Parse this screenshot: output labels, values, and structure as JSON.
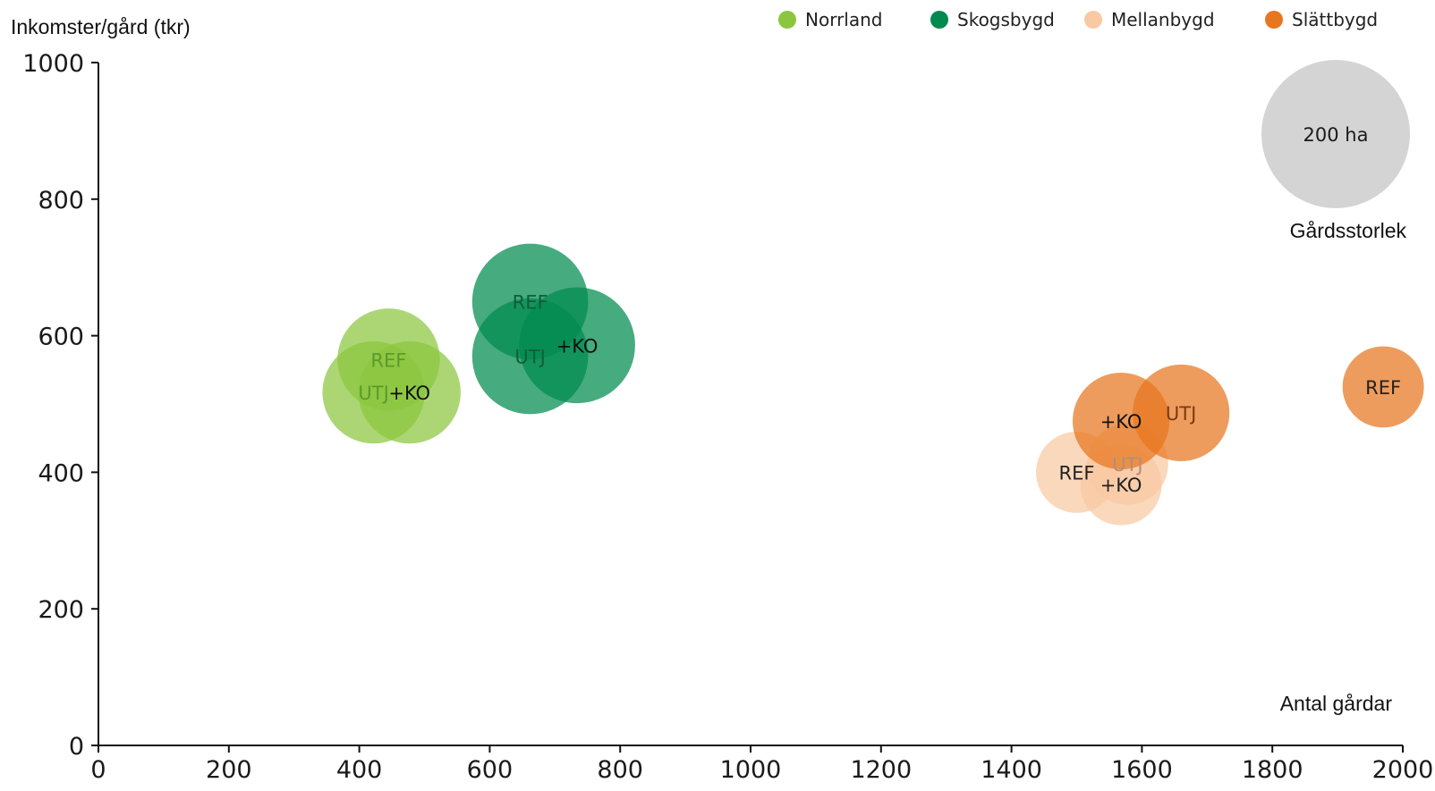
{
  "chart_data": {
    "type": "scatter",
    "title": "",
    "xlabel": "Antal gårdar",
    "ylabel": "Inkomster/gård (tkr)",
    "xlim": [
      0,
      2000
    ],
    "ylim": [
      0,
      1000
    ],
    "xticks": [
      "0",
      "200",
      "400",
      "600",
      "800",
      "1000",
      "1200",
      "1400",
      "1600",
      "1800",
      "2000"
    ],
    "yticks": [
      "0",
      "200",
      "400",
      "600",
      "800",
      "1000"
    ],
    "grid": false,
    "legend_position": "top-right",
    "size_reference": {
      "label": "200 ha",
      "title": "Gårdsstorlek",
      "area_ha": 200,
      "color": "#d4d4d4"
    },
    "series": [
      {
        "name": "Norrland",
        "color": "#8cc63f",
        "points": [
          {
            "label": "REF",
            "x": 445,
            "y": 565,
            "area_ha": 95
          },
          {
            "label": "UTJ",
            "x": 422,
            "y": 517,
            "area_ha": 95
          },
          {
            "label": "+KO",
            "x": 477,
            "y": 517,
            "area_ha": 95
          }
        ]
      },
      {
        "name": "Skogsbygd",
        "color": "#008a4f",
        "points": [
          {
            "label": "REF",
            "x": 662,
            "y": 650,
            "area_ha": 122
          },
          {
            "label": "UTJ",
            "x": 662,
            "y": 570,
            "area_ha": 122
          },
          {
            "label": "+KO",
            "x": 734,
            "y": 586,
            "area_ha": 122
          }
        ]
      },
      {
        "name": "Mellanbygd",
        "color": "#f8c9a2",
        "points": [
          {
            "label": "REF",
            "x": 1500,
            "y": 400,
            "area_ha": 60
          },
          {
            "label": "UTJ",
            "x": 1578,
            "y": 412,
            "area_ha": 60
          },
          {
            "label": "+KO",
            "x": 1568,
            "y": 382,
            "area_ha": 60
          }
        ]
      },
      {
        "name": "Slättbygd",
        "color": "#e8761e",
        "points": [
          {
            "label": "REF",
            "x": 1970,
            "y": 525,
            "area_ha": 60
          },
          {
            "label": "UTJ",
            "x": 1660,
            "y": 487,
            "area_ha": 85
          },
          {
            "label": "+KO",
            "x": 1568,
            "y": 475,
            "area_ha": 85
          }
        ]
      }
    ]
  }
}
